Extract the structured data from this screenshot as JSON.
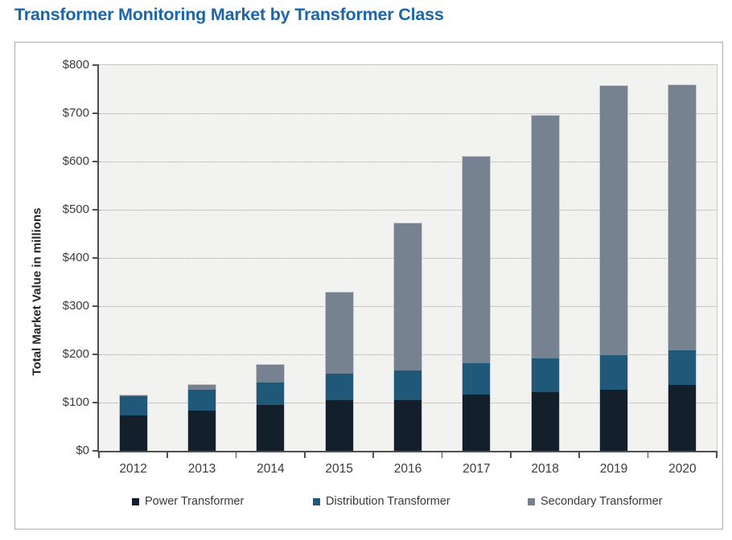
{
  "page_title": "Transformer Monitoring Market by Transformer Class",
  "colors": {
    "title": "#1a66a9",
    "power": "#13202b",
    "distribution": "#1f5878",
    "secondary": "#76828f",
    "plot_bg": "#f2f2f0",
    "grid": "#9b9b9b",
    "axis": "#4f4f4d",
    "plot_edge": "#c9c9c6",
    "bar_outline": "#c6cbd0",
    "tick_text": "#3b3b3b"
  },
  "chart_data": {
    "type": "bar",
    "stacked": true,
    "title": "Transformer Monitoring Market by Transformer Class",
    "xlabel": "",
    "ylabel": "Total Market Value in millions",
    "categories": [
      "2012",
      "2013",
      "2014",
      "2015",
      "2016",
      "2017",
      "2018",
      "2019",
      "2020"
    ],
    "series": [
      {
        "name": "Power Transformer",
        "key": "power",
        "values": [
          73,
          84,
          95,
          105,
          105,
          116,
          121,
          126,
          137
        ]
      },
      {
        "name": "Distribution Transformer",
        "key": "distribution",
        "values": [
          40,
          43,
          46,
          55,
          62,
          66,
          70,
          72,
          72
        ]
      },
      {
        "name": "Secondary Transformer",
        "key": "secondary",
        "values": [
          2,
          9,
          37,
          168,
          305,
          428,
          504,
          558,
          549
        ]
      }
    ],
    "totals": [
      115,
      136,
      178,
      328,
      472,
      610,
      695,
      756,
      758
    ],
    "ylim": [
      0,
      800
    ],
    "ytick_step": 100,
    "ytick_prefix": "$",
    "ytick_labels": [
      "$0",
      "$100",
      "$200",
      "$300",
      "$400",
      "$500",
      "$600",
      "$700",
      "$800"
    ],
    "grid": "horizontal-dotted",
    "legend_position": "bottom"
  }
}
